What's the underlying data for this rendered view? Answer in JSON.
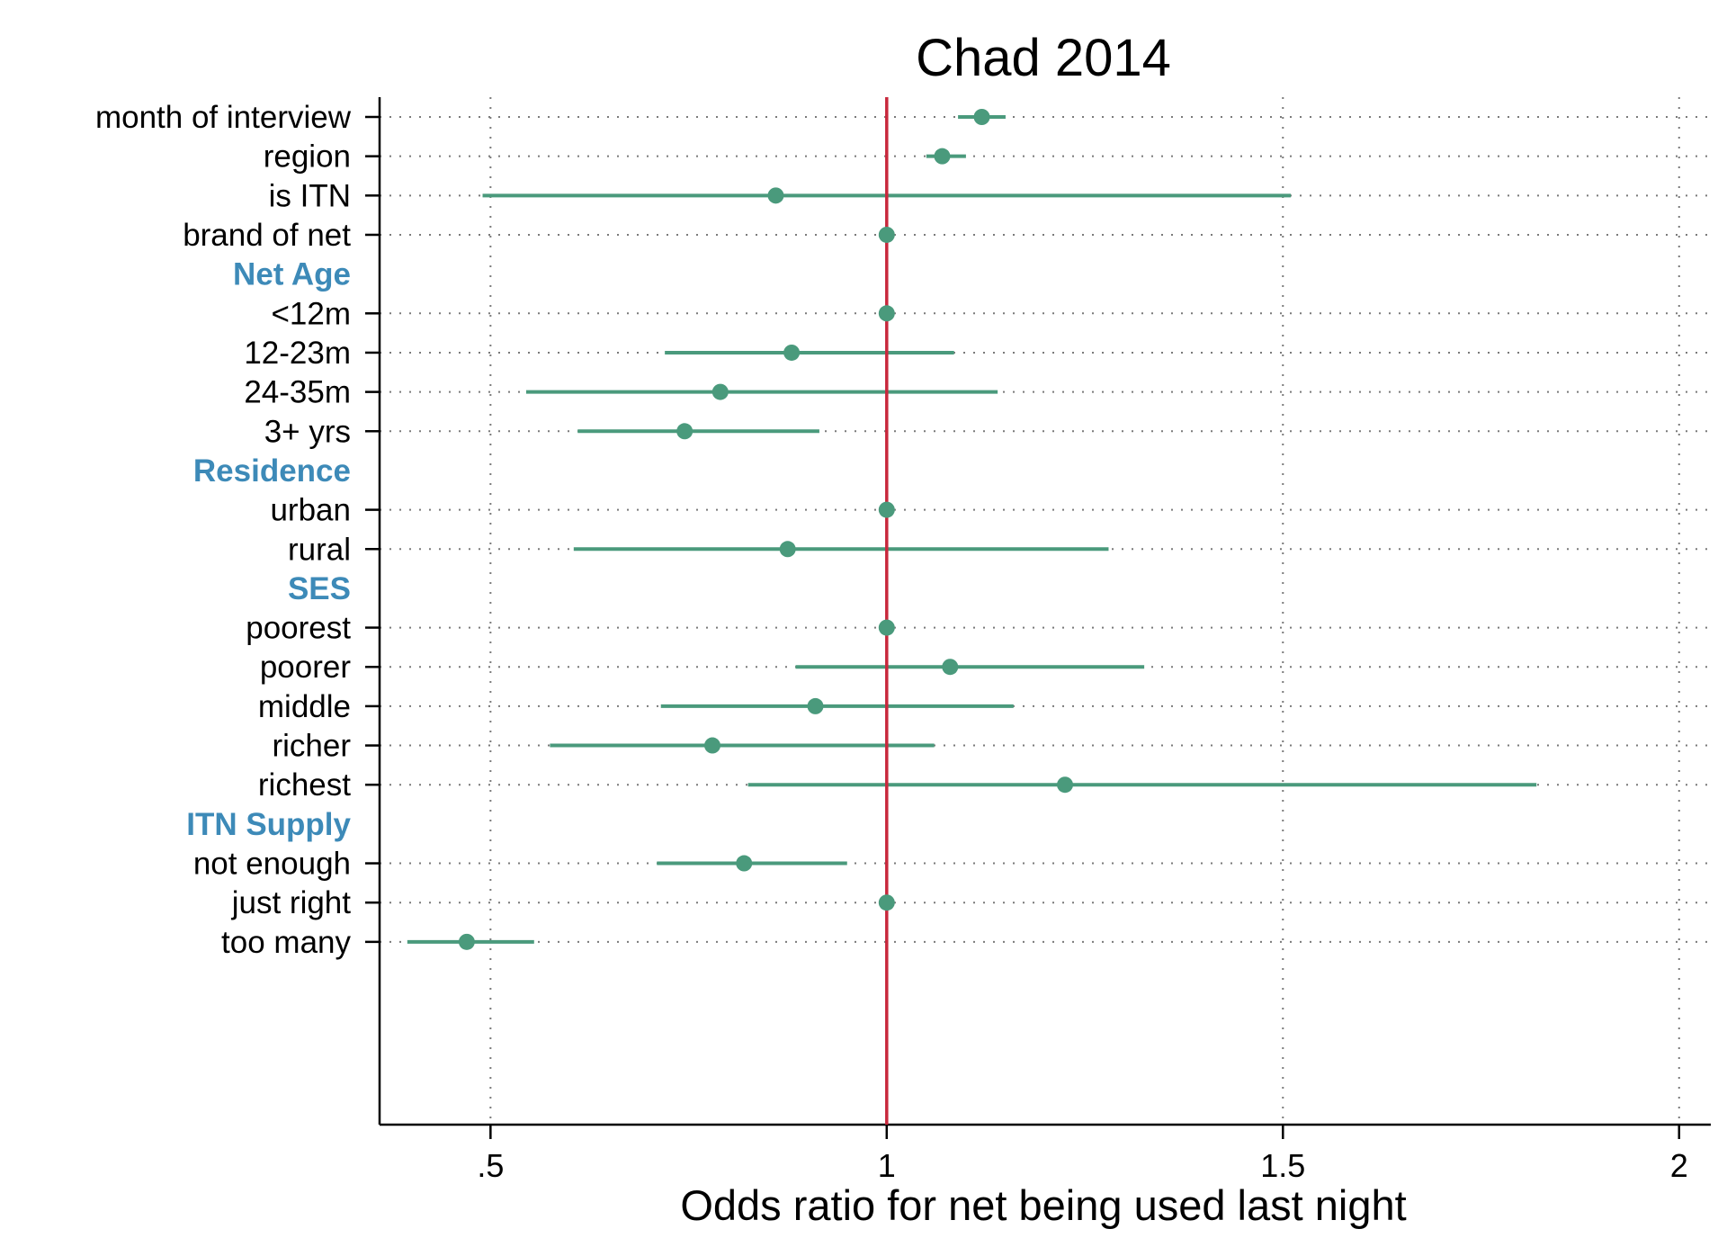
{
  "chart_data": {
    "type": "scatter",
    "title": "Chad 2014",
    "xlabel": "Odds ratio for net being used last night",
    "ylabel": "",
    "xlim": [
      0.36,
      2.04
    ],
    "x_ticks": [
      0.5,
      1,
      1.5,
      2
    ],
    "x_tick_labels": [
      ".5",
      "1",
      "1.5",
      "2"
    ],
    "reference_line": 1,
    "grid": true,
    "colors": {
      "marker": "#4a9a7c",
      "reference": "#c8283c",
      "group_label": "#3d8ab8"
    },
    "rows": [
      {
        "label": "month of interview",
        "estimate": 1.12,
        "lower": 1.09,
        "upper": 1.15
      },
      {
        "label": "region",
        "estimate": 1.07,
        "lower": 1.05,
        "upper": 1.1
      },
      {
        "label": "is ITN",
        "estimate": 0.86,
        "lower": 0.49,
        "upper": 1.51
      },
      {
        "label": "brand of net",
        "estimate": 1.0,
        "lower": 1.0,
        "upper": 1.0
      },
      {
        "group": "Net Age"
      },
      {
        "label": "<12m",
        "estimate": 1.0,
        "lower": 1.0,
        "upper": 1.0
      },
      {
        "label": "12-23m",
        "estimate": 0.88,
        "lower": 0.72,
        "upper": 1.085
      },
      {
        "label": "24-35m",
        "estimate": 0.79,
        "lower": 0.545,
        "upper": 1.14
      },
      {
        "label": "3+ yrs",
        "estimate": 0.745,
        "lower": 0.61,
        "upper": 0.915
      },
      {
        "group": "Residence"
      },
      {
        "label": "urban",
        "estimate": 1.0,
        "lower": 1.0,
        "upper": 1.0
      },
      {
        "label": "rural",
        "estimate": 0.875,
        "lower": 0.605,
        "upper": 1.28
      },
      {
        "group": "SES"
      },
      {
        "label": "poorest",
        "estimate": 1.0,
        "lower": 1.0,
        "upper": 1.0
      },
      {
        "label": "poorer",
        "estimate": 1.08,
        "lower": 0.885,
        "upper": 1.325
      },
      {
        "label": "middle",
        "estimate": 0.91,
        "lower": 0.715,
        "upper": 1.16
      },
      {
        "label": "richer",
        "estimate": 0.78,
        "lower": 0.575,
        "upper": 1.06
      },
      {
        "label": "richest",
        "estimate": 1.225,
        "lower": 0.825,
        "upper": 1.82
      },
      {
        "group": "ITN Supply"
      },
      {
        "label": "not enough",
        "estimate": 0.82,
        "lower": 0.71,
        "upper": 0.95
      },
      {
        "label": "just right",
        "estimate": 1.0,
        "lower": 1.0,
        "upper": 1.0
      },
      {
        "label": "too many",
        "estimate": 0.47,
        "lower": 0.395,
        "upper": 0.555
      }
    ]
  }
}
